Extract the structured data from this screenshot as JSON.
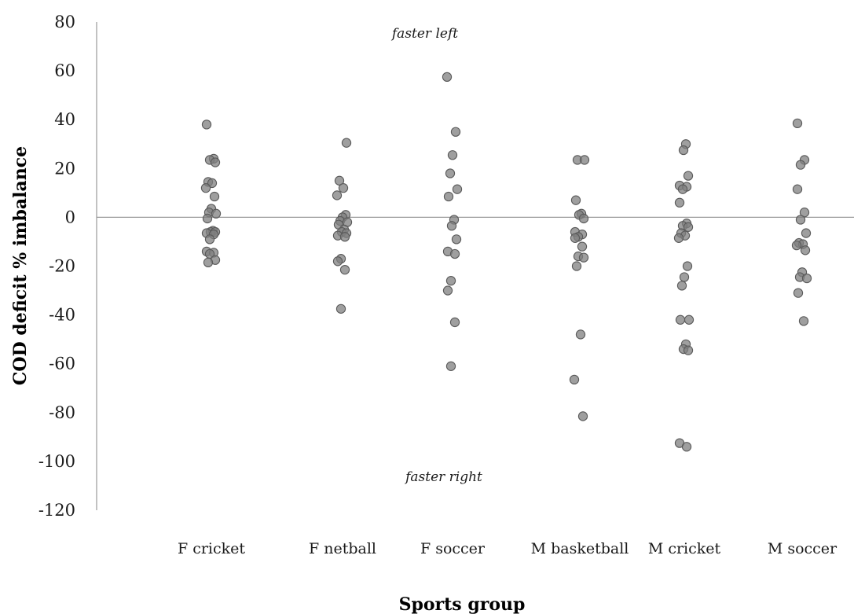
{
  "chart_data": {
    "type": "scatter",
    "title": "",
    "xlabel": "Sports group",
    "ylabel": "COD deficit % imbalance",
    "ylim": [
      -120,
      80
    ],
    "yticks": [
      "80",
      "60",
      "40",
      "20",
      "0",
      "-20",
      "-40",
      "-60",
      "-80",
      "-100",
      "-120"
    ],
    "yticks_values": [
      80,
      60,
      40,
      20,
      0,
      -20,
      -40,
      -60,
      -80,
      -100,
      -120
    ],
    "grid": false,
    "legend": "none",
    "marker_color": "#7f7f7f",
    "annotations": {
      "top": "faster left",
      "bottom": "faster right"
    },
    "categories": [
      "F cricket",
      "F netball",
      "F soccer",
      "M basketball",
      "M cricket",
      "M soccer"
    ],
    "groups": [
      {
        "category": "F cricket",
        "values": [
          38,
          24,
          23.5,
          22.5,
          14.5,
          14,
          12,
          8.5,
          3.5,
          2,
          1.5,
          -0.5,
          -5.5,
          -6,
          -6,
          -6.5,
          -7,
          -9,
          -14,
          -14.5,
          -15,
          -17.5,
          -18.5
        ]
      },
      {
        "category": "F netball",
        "values": [
          30.5,
          15,
          12,
          9,
          1,
          0,
          -1.5,
          -2,
          -3,
          -5,
          -6,
          -6.5,
          -7.5,
          -8,
          -17,
          -18,
          -21.5,
          -37.5
        ]
      },
      {
        "category": "F soccer",
        "values": [
          57.5,
          35,
          25.5,
          18,
          11.5,
          8.5,
          -1,
          -3.5,
          -9,
          -14,
          -15,
          -26,
          -30,
          -43,
          -61
        ]
      },
      {
        "category": "M basketball",
        "values": [
          23.5,
          23.5,
          7,
          1.5,
          1,
          -0.5,
          -6,
          -7,
          -8,
          -8.5,
          -12,
          -16,
          -16.5,
          -20,
          -48,
          -66.5,
          -81.5
        ]
      },
      {
        "category": "M cricket",
        "values": [
          30,
          27.5,
          17,
          13,
          12.5,
          11.5,
          6,
          -2.5,
          -3.5,
          -4,
          -6.5,
          -7.5,
          -8.5,
          -20,
          -24.5,
          -28,
          -42,
          -42,
          -52,
          -54,
          -54.5,
          -92.5,
          -94
        ]
      },
      {
        "category": "M soccer",
        "values": [
          38.5,
          23.5,
          21.5,
          11.5,
          2,
          -1,
          -6.5,
          -10.5,
          -11,
          -11.5,
          -13.5,
          -22.5,
          -24.5,
          -25,
          -31,
          -42.5
        ]
      }
    ]
  }
}
